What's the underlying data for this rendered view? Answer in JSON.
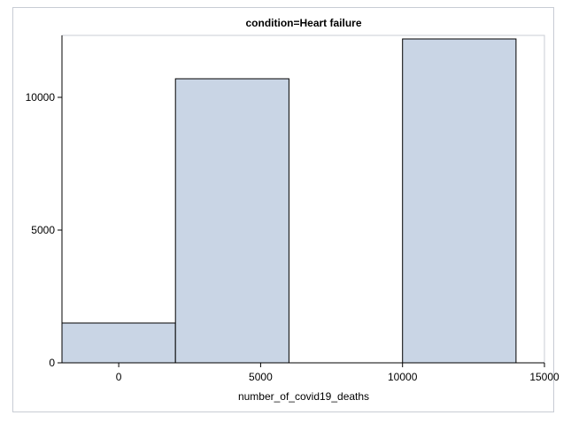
{
  "chart_data": {
    "type": "bar",
    "title": "condition=Heart failure",
    "xlabel": "number_of_covid19_deaths",
    "ylabel": "",
    "xlim": [
      -2000,
      15000
    ],
    "ylim": [
      0,
      12200
    ],
    "x_ticks": [
      0,
      5000,
      10000,
      15000
    ],
    "x_tick_labels": [
      "0",
      "5000",
      "10000",
      "15000"
    ],
    "y_ticks": [
      0,
      5000,
      10000
    ],
    "y_tick_labels": [
      "0",
      "5000",
      "10000"
    ],
    "bins": [
      {
        "x_start": -2000,
        "x_end": 2000,
        "value": 1500
      },
      {
        "x_start": 2000,
        "x_end": 6000,
        "value": 10700
      },
      {
        "x_start": 6000,
        "x_end": 10000,
        "value": 0
      },
      {
        "x_start": 10000,
        "x_end": 14000,
        "value": 12200
      }
    ],
    "grid": false,
    "legend": "none",
    "colors": {
      "bar_fill": "#c9d5e5",
      "bar_stroke": "#000000",
      "axis": "#000000",
      "frame": "#c8ccd4"
    }
  }
}
